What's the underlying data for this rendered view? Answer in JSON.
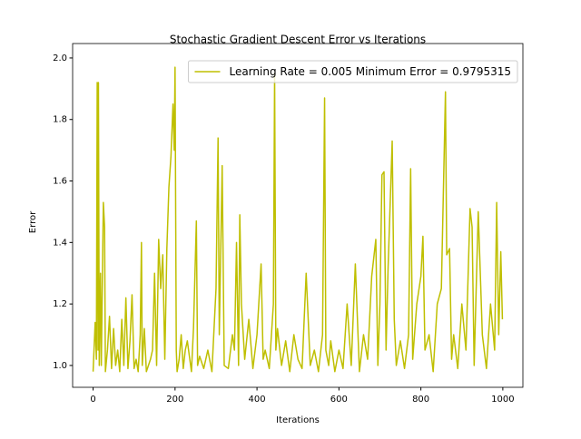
{
  "chart_data": {
    "type": "line",
    "title": "Stochastic Gradient Descent Error vs Iterations",
    "x_label": "Iterations",
    "y_label": "Error",
    "x": [
      0,
      5,
      8,
      10,
      12,
      13,
      15,
      18,
      20,
      25,
      28,
      30,
      35,
      40,
      45,
      50,
      55,
      60,
      65,
      70,
      75,
      80,
      85,
      90,
      95,
      100,
      105,
      110,
      115,
      118,
      120,
      125,
      130,
      140,
      145,
      150,
      155,
      160,
      165,
      170,
      175,
      180,
      185,
      190,
      195,
      198,
      200,
      203,
      205,
      210,
      215,
      220,
      225,
      230,
      240,
      245,
      252,
      255,
      260,
      270,
      280,
      290,
      300,
      305,
      308,
      315,
      320,
      330,
      340,
      345,
      350,
      355,
      358,
      362,
      370,
      380,
      390,
      400,
      410,
      415,
      420,
      430,
      440,
      443,
      446,
      450,
      460,
      470,
      480,
      490,
      500,
      510,
      520,
      530,
      540,
      550,
      560,
      565,
      568,
      575,
      580,
      590,
      600,
      610,
      620,
      630,
      640,
      650,
      660,
      670,
      680,
      690,
      695,
      700,
      705,
      710,
      715,
      720,
      730,
      735,
      740,
      750,
      760,
      770,
      775,
      780,
      790,
      800,
      805,
      810,
      820,
      830,
      840,
      850,
      860,
      863,
      870,
      875,
      880,
      890,
      900,
      910,
      920,
      925,
      930,
      940,
      950,
      960,
      970,
      980,
      985,
      990,
      995,
      999
    ],
    "series": [
      {
        "name": "Learning Rate = 0.005 Minimum Error = 0.9795315",
        "color": "#bfbf00",
        "values": [
          0.98,
          1.14,
          1.02,
          1.92,
          1.05,
          1.92,
          1.0,
          1.3,
          1.0,
          1.53,
          1.45,
          0.98,
          1.05,
          1.16,
          0.99,
          1.12,
          1.0,
          1.05,
          0.98,
          1.15,
          1.0,
          1.22,
          0.99,
          1.08,
          1.23,
          0.99,
          1.02,
          0.98,
          1.1,
          1.4,
          1.0,
          1.12,
          0.98,
          1.02,
          1.05,
          1.3,
          1.0,
          1.41,
          1.25,
          1.36,
          1.02,
          1.38,
          1.58,
          1.68,
          1.85,
          1.7,
          1.97,
          1.05,
          0.98,
          1.02,
          1.1,
          0.99,
          1.05,
          1.08,
          0.98,
          1.12,
          1.47,
          1.0,
          1.03,
          0.99,
          1.05,
          0.98,
          1.25,
          1.74,
          1.1,
          1.65,
          1.0,
          0.99,
          1.1,
          1.05,
          1.4,
          1.0,
          1.49,
          1.2,
          1.02,
          1.15,
          0.99,
          1.1,
          1.33,
          1.02,
          1.05,
          0.99,
          1.2,
          1.95,
          1.05,
          1.12,
          1.0,
          1.08,
          0.98,
          1.1,
          1.02,
          0.99,
          1.3,
          1.0,
          1.05,
          0.98,
          1.1,
          1.87,
          1.05,
          1.0,
          1.08,
          0.98,
          1.05,
          0.99,
          1.2,
          1.0,
          1.33,
          0.98,
          1.1,
          1.02,
          1.29,
          1.41,
          1.0,
          1.2,
          1.62,
          1.63,
          1.05,
          1.32,
          1.73,
          1.15,
          1.0,
          1.08,
          0.99,
          1.1,
          1.64,
          1.02,
          1.2,
          1.29,
          1.42,
          1.05,
          1.1,
          0.98,
          1.2,
          1.25,
          1.89,
          1.36,
          1.38,
          1.02,
          1.1,
          0.99,
          1.2,
          1.05,
          1.51,
          1.45,
          1.0,
          1.5,
          1.1,
          0.99,
          1.2,
          1.05,
          1.53,
          1.1,
          1.37,
          1.15
        ]
      }
    ],
    "xlim": [
      -50,
      1049
    ],
    "ylim": [
      0.929,
      2.047
    ],
    "xticks": [
      0,
      200,
      400,
      600,
      800,
      1000
    ],
    "yticks": [
      {
        "value": 1.0,
        "label": "1.0"
      },
      {
        "value": 1.2,
        "label": "1.2"
      },
      {
        "value": 1.4,
        "label": "1.4"
      },
      {
        "value": 1.6,
        "label": "1.6"
      },
      {
        "value": 1.8,
        "label": "1.8"
      },
      {
        "value": 2.0,
        "label": "2.0"
      }
    ],
    "legend": "upper right",
    "grid": false
  }
}
